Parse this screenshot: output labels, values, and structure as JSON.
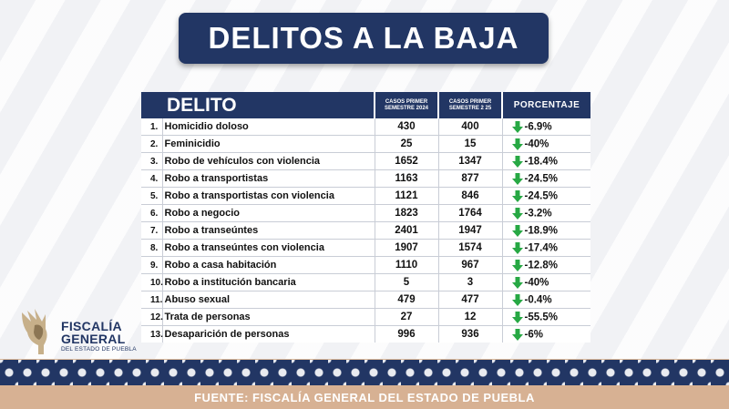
{
  "title": "DELITOS A LA BAJA",
  "table": {
    "headers": {
      "delito": "DELITO",
      "casos_2024": "CASOS PRIMER SEMESTRE 2024",
      "casos_2025": "CASOS PRIMER SEMESTRE 2 25",
      "porcentaje": "PORCENTAJE"
    },
    "rows": [
      {
        "num": "1.",
        "name": "Homicidio doloso",
        "v2024": "430",
        "v2025": "400",
        "pct": "-6.9%"
      },
      {
        "num": "2.",
        "name": "Feminicidio",
        "v2024": "25",
        "v2025": "15",
        "pct": "-40%"
      },
      {
        "num": "3.",
        "name": "Robo de vehículos con violencia",
        "v2024": "1652",
        "v2025": "1347",
        "pct": "-18.4%"
      },
      {
        "num": "4.",
        "name": "Robo a transportistas",
        "v2024": "1163",
        "v2025": "877",
        "pct": "-24.5%"
      },
      {
        "num": "5.",
        "name": "Robo a transportistas con violencia",
        "v2024": "1121",
        "v2025": "846",
        "pct": "-24.5%"
      },
      {
        "num": "6.",
        "name": "Robo a negocio",
        "v2024": "1823",
        "v2025": "1764",
        "pct": "-3.2%"
      },
      {
        "num": "7.",
        "name": "Robo a transeúntes",
        "v2024": "2401",
        "v2025": "1947",
        "pct": "-18.9%"
      },
      {
        "num": "8.",
        "name": "Robo a transeúntes con violencia",
        "v2024": "1907",
        "v2025": "1574",
        "pct": "-17.4%"
      },
      {
        "num": "9.",
        "name": "Robo a casa habitación",
        "v2024": "1110",
        "v2025": "967",
        "pct": "-12.8%"
      },
      {
        "num": "10.",
        "name": "Robo a institución bancaria",
        "v2024": "5",
        "v2025": "3",
        "pct": "-40%"
      },
      {
        "num": "11.",
        "name": "Abuso sexual",
        "v2024": "479",
        "v2025": "477",
        "pct": "-0.4%"
      },
      {
        "num": "12.",
        "name": "Trata de personas",
        "v2024": "27",
        "v2025": "12",
        "pct": "-55.5%"
      },
      {
        "num": "13.",
        "name": "Desaparición de personas",
        "v2024": "996",
        "v2025": "936",
        "pct": "-6%"
      }
    ]
  },
  "logo": {
    "line1": "FISCALÍA",
    "line2": "GENERAL",
    "line3": "DEL ESTADO DE PUEBLA"
  },
  "footer": "FUENTE: FISCALÍA GENERAL DEL ESTADO DE PUEBLA",
  "colors": {
    "navy": "#223664",
    "green_arrow": "#27a844",
    "footer_bg": "#d7b193"
  },
  "icons": {
    "trend": "arrow-down-icon",
    "emblem": "eagle-emblem-icon"
  }
}
